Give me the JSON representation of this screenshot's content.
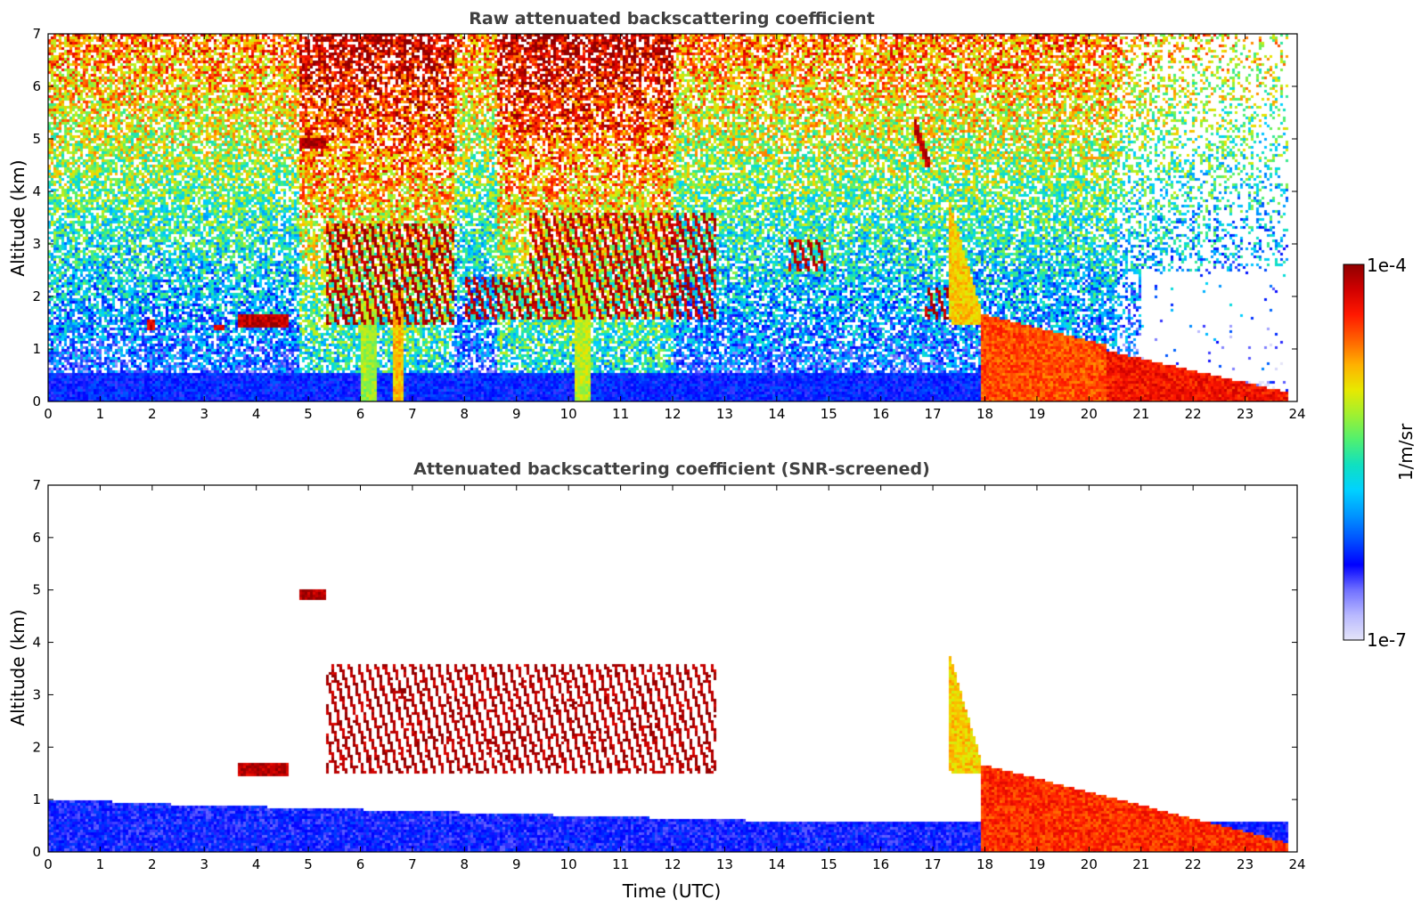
{
  "chart_data": [
    {
      "type": "heatmap",
      "title": "Raw attenuated backscattering coefficient",
      "xlabel": "",
      "ylabel": "Altitude (km)",
      "xlim": [
        0,
        24
      ],
      "ylim": [
        0,
        7
      ],
      "xticks": [
        0,
        1,
        2,
        3,
        4,
        5,
        6,
        7,
        8,
        9,
        10,
        11,
        12,
        13,
        14,
        15,
        16,
        17,
        18,
        19,
        20,
        21,
        22,
        23,
        24
      ],
      "yticks": [
        0,
        1,
        2,
        3,
        4,
        5,
        6,
        7
      ],
      "screening": "none",
      "features": [
        {
          "kind": "aerosol_layer",
          "t": [
            1.9,
            2.05
          ],
          "alt": [
            1.4,
            1.6
          ],
          "level": 0.92
        },
        {
          "kind": "aerosol_layer",
          "t": [
            3.15,
            3.35
          ],
          "alt": [
            1.38,
            1.5
          ],
          "level": 0.9
        },
        {
          "kind": "aerosol_layer",
          "t": [
            3.6,
            4.6
          ],
          "alt": [
            1.45,
            1.7
          ],
          "level": 0.95
        },
        {
          "kind": "elevated_layer",
          "t": [
            4.8,
            5.3
          ],
          "alt": [
            4.82,
            5.02
          ],
          "level": 0.97
        },
        {
          "kind": "cloud_streaks",
          "t": [
            5.3,
            7.8
          ],
          "alt": [
            1.5,
            3.4
          ],
          "level": 0.97
        },
        {
          "kind": "cloud_streaks",
          "t": [
            8.0,
            9.3
          ],
          "alt": [
            1.6,
            2.4
          ],
          "level": 0.96
        },
        {
          "kind": "cloud_streaks",
          "t": [
            9.2,
            12.8
          ],
          "alt": [
            1.6,
            3.6
          ],
          "level": 0.95
        },
        {
          "kind": "cloud_streaks",
          "t": [
            14.2,
            14.9
          ],
          "alt": [
            2.5,
            3.1
          ],
          "level": 0.95
        },
        {
          "kind": "fall_streak",
          "t": [
            16.6,
            16.9
          ],
          "alt": [
            4.5,
            5.4
          ],
          "level": 0.95
        },
        {
          "kind": "cloud_streaks",
          "t": [
            16.8,
            17.3
          ],
          "alt": [
            1.6,
            2.2
          ],
          "level": 0.96
        },
        {
          "kind": "cirrus_descending",
          "t": [
            17.3,
            17.9
          ],
          "alt": [
            1.5,
            3.8
          ],
          "level": 0.7
        },
        {
          "kind": "precipitation_shaft",
          "t": [
            6.0,
            6.3
          ],
          "alt": [
            0,
            2.0
          ],
          "level": 0.6
        },
        {
          "kind": "precipitation_shaft",
          "t": [
            6.6,
            6.8
          ],
          "alt": [
            0,
            2.1
          ],
          "level": 0.72
        },
        {
          "kind": "precipitation_shaft",
          "t": [
            10.1,
            10.4
          ],
          "alt": [
            0,
            2.6
          ],
          "level": 0.62
        },
        {
          "kind": "boundary_layer",
          "t": [
            0,
            18
          ],
          "alt": [
            0,
            0.55
          ],
          "level": 0.22
        },
        {
          "kind": "dense_low_layer",
          "t": [
            17.9,
            20.3
          ],
          "top_alt": [
            1.7,
            1.1
          ],
          "level": 0.82
        },
        {
          "kind": "dense_low_layer",
          "t": [
            20.3,
            23.8
          ],
          "top_alt": [
            1.0,
            0.2
          ],
          "level": 0.88
        }
      ]
    },
    {
      "type": "heatmap",
      "title": "Attenuated backscattering coefficient (SNR-screened)",
      "xlabel": "Time (UTC)",
      "ylabel": "Altitude (km)",
      "xlim": [
        0,
        24
      ],
      "ylim": [
        0,
        7
      ],
      "xticks": [
        0,
        1,
        2,
        3,
        4,
        5,
        6,
        7,
        8,
        9,
        10,
        11,
        12,
        13,
        14,
        15,
        16,
        17,
        18,
        19,
        20,
        21,
        22,
        23,
        24
      ],
      "yticks": [
        0,
        1,
        2,
        3,
        4,
        5,
        6,
        7
      ],
      "screening": "low-SNR pixels removed (white)",
      "features": [
        {
          "kind": "boundary_layer",
          "t": [
            0,
            18
          ],
          "top_alt": [
            1.0,
            0.5
          ],
          "level": 0.2
        },
        {
          "kind": "aerosol_layer",
          "t": [
            3.6,
            4.6
          ],
          "alt": [
            1.45,
            1.7
          ],
          "level": 0.95
        },
        {
          "kind": "elevated_layer",
          "t": [
            4.8,
            5.3
          ],
          "alt": [
            4.82,
            5.02
          ],
          "level": 0.97
        },
        {
          "kind": "cloud_streaks",
          "t": [
            5.3,
            12.8
          ],
          "alt": [
            1.5,
            3.6
          ],
          "level": 0.97
        },
        {
          "kind": "cirrus_descending",
          "t": [
            17.3,
            17.9
          ],
          "alt": [
            1.5,
            3.8
          ],
          "level": 0.7
        },
        {
          "kind": "dense_low_layer",
          "t": [
            17.9,
            23.8
          ],
          "top_alt": [
            1.7,
            0.2
          ],
          "level": 0.85
        }
      ]
    }
  ],
  "colorbar": {
    "label": "1/m/sr",
    "min_label": "1e-7",
    "max_label": "1e-4",
    "scale": "log",
    "colors": [
      "#e4e4f8",
      "#b8b8ff",
      "#7070ff",
      "#0000ff",
      "#0050ff",
      "#0096ff",
      "#00d2ff",
      "#10e0c0",
      "#50f070",
      "#a0f030",
      "#e8e800",
      "#ffb000",
      "#ff6000",
      "#ff1800",
      "#d00000",
      "#900000"
    ]
  }
}
